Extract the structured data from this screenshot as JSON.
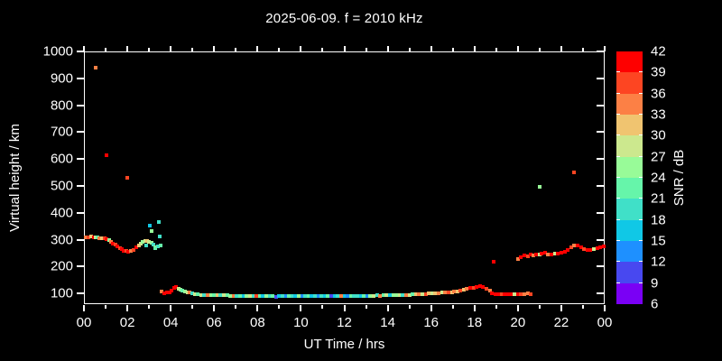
{
  "title": "2025-06-09. f = 2010 kHz",
  "chart_data": {
    "type": "scatter",
    "title": "2025-06-09. f = 2010 kHz",
    "xlabel": "UT Time / hrs",
    "ylabel": "Virtual height / km",
    "xlim": [
      0,
      24
    ],
    "ylim": [
      60,
      1000
    ],
    "grid": false,
    "background": "#000000",
    "frame_color": "#ffffff",
    "text_color": "#ffffff",
    "x_tick_hours": [
      0,
      2,
      4,
      6,
      8,
      10,
      12,
      14,
      16,
      18,
      20,
      22,
      24
    ],
    "x_tick_labels": [
      "00",
      "02",
      "04",
      "06",
      "08",
      "10",
      "12",
      "14",
      "16",
      "18",
      "20",
      "22",
      "00"
    ],
    "x_minor_tick_hours": [
      1,
      3,
      5,
      7,
      9,
      11,
      13,
      15,
      17,
      19,
      21,
      23
    ],
    "y_tick_km": [
      100,
      200,
      300,
      400,
      500,
      600,
      700,
      800,
      900,
      1000
    ],
    "y_tick_labels": [
      "100",
      "200",
      "300",
      "400",
      "500",
      "600",
      "700",
      "800",
      "900",
      "1000"
    ],
    "colorbar": {
      "label": "SNR / dB",
      "tick_values": [
        6,
        9,
        12,
        15,
        18,
        21,
        24,
        27,
        30,
        33,
        36,
        39,
        42
      ],
      "segment_colors_low_to_high": [
        "#7a00f5",
        "#4848f0",
        "#1e90ff",
        "#10c8e6",
        "#40e0c8",
        "#66f5aa",
        "#98fb98",
        "#cce88e",
        "#f0c470",
        "#fc8045",
        "#fd4522",
        "#fe0000"
      ]
    },
    "points_format": [
      "ut_hour",
      "virtual_height_km",
      "snr_color_index"
    ],
    "points": [
      [
        0.08,
        308,
        9
      ],
      [
        0.2,
        310,
        10
      ],
      [
        0.33,
        311,
        8
      ],
      [
        0.45,
        309,
        11
      ],
      [
        0.55,
        307,
        7
      ],
      [
        0.64,
        309,
        5
      ],
      [
        0.72,
        306,
        9
      ],
      [
        0.83,
        306,
        8
      ],
      [
        0.95,
        304,
        10
      ],
      [
        1.05,
        302,
        11
      ],
      [
        1.15,
        299,
        6
      ],
      [
        1.25,
        292,
        9
      ],
      [
        1.35,
        286,
        11
      ],
      [
        1.45,
        280,
        10
      ],
      [
        1.55,
        275,
        11
      ],
      [
        1.65,
        269,
        10
      ],
      [
        1.75,
        264,
        11
      ],
      [
        1.85,
        259,
        11
      ],
      [
        1.95,
        257,
        10
      ],
      [
        2.05,
        256,
        11
      ],
      [
        2.15,
        258,
        9
      ],
      [
        2.3,
        262,
        10
      ],
      [
        2.42,
        270,
        11
      ],
      [
        2.52,
        277,
        8
      ],
      [
        2.62,
        284,
        7
      ],
      [
        2.72,
        290,
        6
      ],
      [
        2.82,
        294,
        7
      ],
      [
        2.92,
        296,
        8
      ],
      [
        3.0,
        291,
        7
      ],
      [
        3.1,
        287,
        6
      ],
      [
        3.2,
        281,
        4
      ],
      [
        3.3,
        272,
        6
      ],
      [
        3.42,
        276,
        4
      ],
      [
        3.52,
        278,
        5
      ],
      [
        0.55,
        940,
        9
      ],
      [
        1.05,
        615,
        11
      ],
      [
        2.0,
        530,
        10
      ],
      [
        2.88,
        278,
        4
      ],
      [
        3.02,
        352,
        3
      ],
      [
        3.12,
        332,
        6
      ],
      [
        3.28,
        267,
        5
      ],
      [
        3.45,
        364,
        4
      ],
      [
        3.5,
        311,
        4
      ],
      [
        3.58,
        107,
        9
      ],
      [
        3.7,
        101,
        11
      ],
      [
        3.82,
        103,
        11
      ],
      [
        3.95,
        105,
        11
      ],
      [
        4.05,
        110,
        11
      ],
      [
        4.15,
        120,
        11
      ],
      [
        4.25,
        123,
        11
      ],
      [
        4.35,
        118,
        7
      ],
      [
        4.45,
        115,
        6
      ],
      [
        4.55,
        111,
        5
      ],
      [
        4.65,
        108,
        6
      ],
      [
        4.78,
        105,
        7
      ],
      [
        4.88,
        102,
        9
      ],
      [
        5.0,
        100,
        4
      ],
      [
        5.1,
        98,
        7
      ],
      [
        5.25,
        96,
        5
      ],
      [
        5.4,
        95,
        7
      ],
      [
        5.55,
        95,
        4
      ],
      [
        5.7,
        94,
        9
      ],
      [
        5.85,
        94,
        6
      ],
      [
        6.0,
        93,
        5
      ],
      [
        6.15,
        93,
        8
      ],
      [
        6.3,
        92,
        4
      ],
      [
        6.45,
        92,
        7
      ],
      [
        6.6,
        92,
        5
      ],
      [
        6.75,
        91,
        6
      ],
      [
        6.9,
        91,
        9
      ],
      [
        7.05,
        91,
        4
      ],
      [
        7.2,
        90,
        5
      ],
      [
        7.35,
        91,
        3
      ],
      [
        7.5,
        90,
        6
      ],
      [
        7.65,
        90,
        7
      ],
      [
        7.8,
        91,
        4
      ],
      [
        7.95,
        90,
        10
      ],
      [
        8.1,
        90,
        5
      ],
      [
        8.25,
        91,
        3
      ],
      [
        8.4,
        90,
        6
      ],
      [
        8.55,
        90,
        4
      ],
      [
        8.7,
        90,
        5
      ],
      [
        8.85,
        88,
        1
      ],
      [
        9.0,
        90,
        3
      ],
      [
        9.15,
        90,
        4
      ],
      [
        9.3,
        89,
        2
      ],
      [
        9.45,
        90,
        5
      ],
      [
        9.6,
        90,
        4
      ],
      [
        9.75,
        90,
        3
      ],
      [
        9.9,
        89,
        6
      ],
      [
        10.05,
        90,
        2
      ],
      [
        10.2,
        90,
        4
      ],
      [
        10.35,
        90,
        5
      ],
      [
        10.5,
        89,
        3
      ],
      [
        10.65,
        90,
        4
      ],
      [
        10.8,
        90,
        2
      ],
      [
        10.95,
        89,
        4
      ],
      [
        11.1,
        90,
        3
      ],
      [
        11.25,
        90,
        5
      ],
      [
        11.4,
        89,
        1
      ],
      [
        11.55,
        90,
        3
      ],
      [
        11.7,
        90,
        4
      ],
      [
        11.85,
        90,
        9
      ],
      [
        12.0,
        89,
        3
      ],
      [
        12.15,
        90,
        2
      ],
      [
        12.3,
        90,
        5
      ],
      [
        12.45,
        90,
        4
      ],
      [
        12.6,
        90,
        4
      ],
      [
        12.75,
        90,
        3
      ],
      [
        12.9,
        91,
        5
      ],
      [
        13.05,
        90,
        2
      ],
      [
        13.2,
        91,
        6
      ],
      [
        13.35,
        91,
        7
      ],
      [
        13.5,
        92,
        4
      ],
      [
        13.65,
        91,
        9
      ],
      [
        13.8,
        92,
        5
      ],
      [
        13.95,
        92,
        7
      ],
      [
        14.1,
        93,
        3
      ],
      [
        14.25,
        93,
        6
      ],
      [
        14.4,
        93,
        6
      ],
      [
        14.55,
        94,
        7
      ],
      [
        14.7,
        94,
        4
      ],
      [
        14.85,
        95,
        9
      ],
      [
        15.0,
        95,
        7
      ],
      [
        15.15,
        96,
        5
      ],
      [
        15.3,
        96,
        8
      ],
      [
        15.45,
        97,
        9
      ],
      [
        15.6,
        97,
        7
      ],
      [
        15.75,
        98,
        10
      ],
      [
        15.9,
        99,
        8
      ],
      [
        16.05,
        99,
        7
      ],
      [
        16.2,
        100,
        8
      ],
      [
        16.35,
        101,
        9
      ],
      [
        16.5,
        102,
        7
      ],
      [
        16.65,
        103,
        9
      ],
      [
        16.8,
        104,
        10
      ],
      [
        16.95,
        105,
        8
      ],
      [
        17.05,
        106,
        9
      ],
      [
        17.2,
        108,
        8
      ],
      [
        17.35,
        111,
        10
      ],
      [
        17.5,
        113,
        8
      ],
      [
        17.65,
        116,
        9
      ],
      [
        17.8,
        119,
        11
      ],
      [
        17.95,
        122,
        10
      ],
      [
        18.1,
        125,
        11
      ],
      [
        18.25,
        127,
        11
      ],
      [
        18.4,
        124,
        11
      ],
      [
        18.55,
        117,
        10
      ],
      [
        18.7,
        110,
        9
      ],
      [
        18.8,
        99,
        11
      ],
      [
        18.95,
        97,
        11
      ],
      [
        19.1,
        97,
        11
      ],
      [
        19.25,
        97,
        10
      ],
      [
        19.4,
        97,
        11
      ],
      [
        19.55,
        98,
        11
      ],
      [
        19.7,
        97,
        11
      ],
      [
        19.85,
        98,
        7
      ],
      [
        20.0,
        98,
        11
      ],
      [
        20.15,
        97,
        10
      ],
      [
        20.3,
        97,
        9
      ],
      [
        20.45,
        99,
        9
      ],
      [
        20.6,
        98,
        10
      ],
      [
        18.9,
        217,
        11
      ],
      [
        20.0,
        228,
        9
      ],
      [
        20.15,
        236,
        11
      ],
      [
        20.3,
        241,
        11
      ],
      [
        20.45,
        238,
        10
      ],
      [
        20.6,
        243,
        11
      ],
      [
        20.7,
        240,
        9
      ],
      [
        20.85,
        245,
        11
      ],
      [
        21.0,
        243,
        7
      ],
      [
        21.1,
        247,
        11
      ],
      [
        21.25,
        250,
        11
      ],
      [
        21.4,
        246,
        9
      ],
      [
        21.55,
        244,
        11
      ],
      [
        21.7,
        249,
        7
      ],
      [
        21.85,
        247,
        11
      ],
      [
        22.0,
        252,
        11
      ],
      [
        22.15,
        255,
        11
      ],
      [
        22.3,
        261,
        11
      ],
      [
        22.45,
        270,
        10
      ],
      [
        22.6,
        277,
        9
      ],
      [
        22.75,
        279,
        11
      ],
      [
        22.9,
        272,
        11
      ],
      [
        23.05,
        266,
        10
      ],
      [
        23.2,
        261,
        11
      ],
      [
        23.35,
        262,
        11
      ],
      [
        23.5,
        264,
        7
      ],
      [
        23.65,
        268,
        11
      ],
      [
        23.8,
        271,
        11
      ],
      [
        23.95,
        274,
        11
      ],
      [
        21.0,
        498,
        6
      ],
      [
        22.6,
        551,
        10
      ]
    ]
  }
}
